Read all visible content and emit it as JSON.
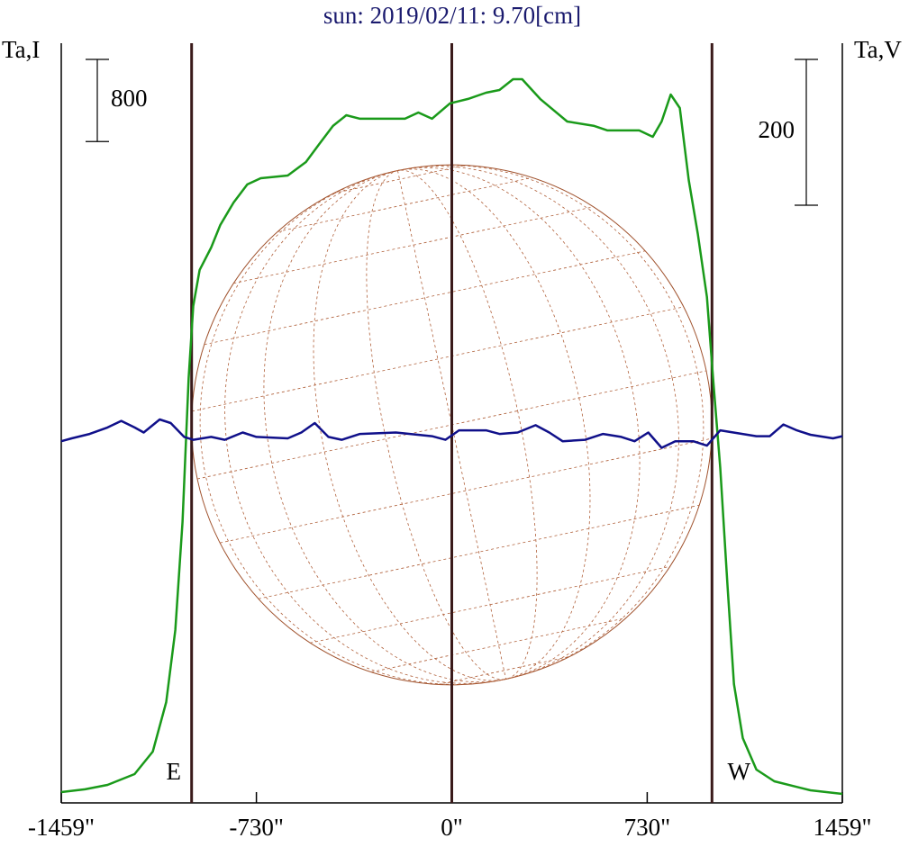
{
  "chart_data": {
    "type": "line",
    "title": "sun: 2019/02/11: 9.70[cm]",
    "xlim": [
      -1459,
      1459
    ],
    "xticks": [
      {
        "value": -1459,
        "label": "-1459\""
      },
      {
        "value": -730,
        "label": "-730\""
      },
      {
        "value": 0,
        "label": "0\""
      },
      {
        "value": 730,
        "label": "730\""
      },
      {
        "value": 1459,
        "label": "1459\""
      }
    ],
    "ylim": [
      0,
      7400
    ],
    "y2lim": [
      -496,
      546
    ],
    "vlines": [
      {
        "value": -972,
        "label": "E"
      },
      {
        "value": 0
      },
      {
        "value": 972,
        "label": "W"
      }
    ],
    "scale_bars": [
      {
        "value": 800,
        "axis": "y"
      },
      {
        "value": 200,
        "axis": "y2"
      }
    ],
    "series": [
      {
        "name": "Ta,I",
        "color": "#1a9a1a",
        "x": [
          -1459,
          -1370,
          -1286,
          -1185,
          -1117,
          -1067,
          -1033,
          -1006,
          -983,
          -966,
          -942,
          -899,
          -865,
          -815,
          -764,
          -714,
          -613,
          -545,
          -495,
          -444,
          -394,
          -343,
          -175,
          -125,
          -74,
          -7,
          61,
          128,
          178,
          229,
          263,
          330,
          431,
          532,
          582,
          700,
          751,
          784,
          818,
          852,
          885,
          919,
          953,
          976,
          1003,
          1030,
          1054,
          1087,
          1138,
          1205,
          1340,
          1459
        ],
        "values": [
          105,
          132,
          175,
          281,
          500,
          982,
          1683,
          2736,
          4138,
          4840,
          5191,
          5410,
          5629,
          5848,
          6024,
          6085,
          6111,
          6243,
          6418,
          6594,
          6699,
          6664,
          6664,
          6725,
          6664,
          6813,
          6857,
          6918,
          6944,
          7049,
          7049,
          6857,
          6637,
          6594,
          6550,
          6550,
          6488,
          6637,
          6900,
          6769,
          6067,
          5541,
          4928,
          4138,
          3262,
          2122,
          1157,
          631,
          324,
          210,
          123,
          88
        ]
      },
      {
        "name": "Ta,V",
        "color": "#10108a",
        "axis": "y2",
        "x": [
          -1459,
          -1420,
          -1353,
          -1286,
          -1235,
          -1185,
          -1151,
          -1091,
          -1050,
          -1000,
          -966,
          -899,
          -848,
          -781,
          -730,
          -613,
          -562,
          -512,
          -461,
          -411,
          -343,
          -209,
          -74,
          -24,
          27,
          128,
          178,
          246,
          313,
          364,
          414,
          498,
          565,
          633,
          683,
          734,
          784,
          835,
          902,
          953,
          1003,
          1138,
          1188,
          1239,
          1289,
          1340,
          1424,
          1459
        ],
        "values": [
          0,
          4,
          10,
          19,
          28,
          19,
          12,
          30,
          25,
          6,
          2,
          6,
          2,
          12,
          6,
          4,
          12,
          25,
          6,
          2,
          10,
          12,
          7,
          2,
          15,
          15,
          10,
          12,
          22,
          12,
          0,
          2,
          10,
          6,
          0,
          12,
          -9,
          0,
          0,
          -6,
          15,
          7,
          7,
          23,
          15,
          9,
          4,
          7
        ]
      }
    ]
  }
}
